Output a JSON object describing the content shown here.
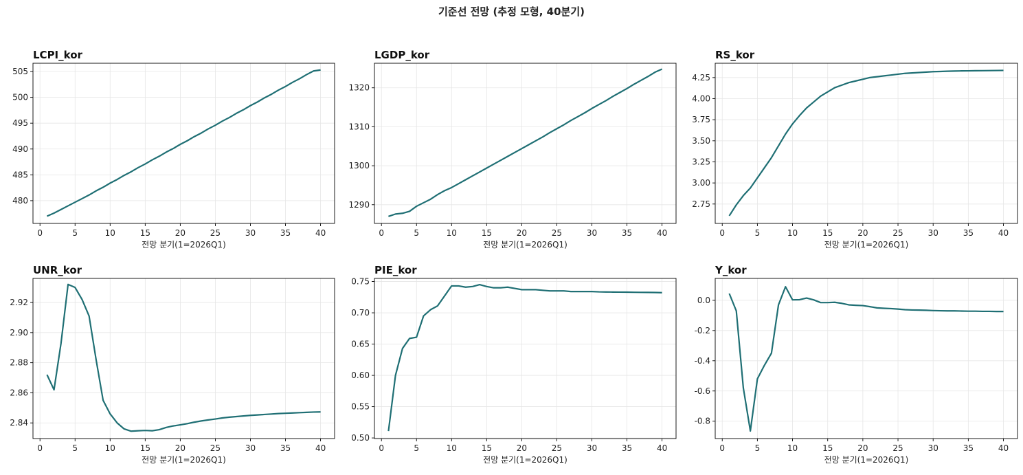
{
  "figure": {
    "title": "기준선 전망 (추정 모형, 40분기)",
    "line_color": "#1f6f74"
  },
  "chart_data": [
    {
      "type": "line",
      "title": "LCPI_kor",
      "xlabel": "전망 분기(1=2026Q1)",
      "ylabel": "",
      "xlim": [
        -1,
        42
      ],
      "ylim": [
        475.6,
        506.6
      ],
      "xticks": [
        0,
        5,
        10,
        15,
        20,
        25,
        30,
        35,
        40
      ],
      "yticks": [
        480,
        485,
        490,
        495,
        500,
        505
      ],
      "ytick_labels": [
        "480",
        "485",
        "490",
        "495",
        "500",
        "505"
      ],
      "grid": true,
      "x": [
        1,
        2,
        3,
        4,
        5,
        6,
        7,
        8,
        9,
        10,
        11,
        12,
        13,
        14,
        15,
        16,
        17,
        18,
        19,
        20,
        21,
        22,
        23,
        24,
        25,
        26,
        27,
        28,
        29,
        30,
        31,
        32,
        33,
        34,
        35,
        36,
        37,
        38,
        39,
        40
      ],
      "series": [
        {
          "values": [
            477.0,
            477.6,
            478.3,
            479.0,
            479.7,
            480.4,
            481.1,
            481.9,
            482.6,
            483.4,
            484.1,
            484.9,
            485.6,
            486.4,
            487.1,
            487.9,
            488.6,
            489.4,
            490.1,
            490.9,
            491.6,
            492.4,
            493.1,
            493.9,
            494.6,
            495.4,
            496.1,
            496.9,
            497.6,
            498.4,
            499.1,
            499.9,
            500.6,
            501.4,
            502.1,
            502.9,
            503.6,
            504.4,
            505.1,
            505.3
          ]
        }
      ]
    },
    {
      "type": "line",
      "title": "LGDP_kor",
      "xlabel": "전망 분기(1=2026Q1)",
      "ylabel": "",
      "xlim": [
        -1,
        42
      ],
      "ylim": [
        1285.2,
        1326.3
      ],
      "xticks": [
        0,
        5,
        10,
        15,
        20,
        25,
        30,
        35,
        40
      ],
      "yticks": [
        1290,
        1300,
        1310,
        1320
      ],
      "ytick_labels": [
        "1290",
        "1300",
        "1310",
        "1320"
      ],
      "grid": true,
      "x": [
        1,
        2,
        3,
        4,
        5,
        6,
        7,
        8,
        9,
        10,
        11,
        12,
        13,
        14,
        15,
        16,
        17,
        18,
        19,
        20,
        21,
        22,
        23,
        24,
        25,
        26,
        27,
        28,
        29,
        30,
        31,
        32,
        33,
        34,
        35,
        36,
        37,
        38,
        39,
        40
      ],
      "series": [
        {
          "values": [
            1287.0,
            1287.6,
            1287.8,
            1288.3,
            1289.6,
            1290.5,
            1291.4,
            1292.6,
            1293.6,
            1294.4,
            1295.4,
            1296.4,
            1297.4,
            1298.4,
            1299.4,
            1300.4,
            1301.4,
            1302.4,
            1303.4,
            1304.4,
            1305.4,
            1306.4,
            1307.4,
            1308.5,
            1309.5,
            1310.5,
            1311.6,
            1312.6,
            1313.6,
            1314.7,
            1315.7,
            1316.7,
            1317.8,
            1318.8,
            1319.8,
            1320.9,
            1321.9,
            1322.9,
            1324.0,
            1324.8
          ]
        }
      ]
    },
    {
      "type": "line",
      "title": "RS_kor",
      "xlabel": "전망 분기(1=2026Q1)",
      "ylabel": "",
      "xlim": [
        -1,
        42
      ],
      "ylim": [
        2.52,
        4.42
      ],
      "xticks": [
        0,
        5,
        10,
        15,
        20,
        25,
        30,
        35,
        40
      ],
      "yticks": [
        2.75,
        3.0,
        3.25,
        3.5,
        3.75,
        4.0,
        4.25
      ],
      "ytick_labels": [
        "2.75",
        "3.00",
        "3.25",
        "3.50",
        "3.75",
        "4.00",
        "4.25"
      ],
      "grid": true,
      "x": [
        1,
        2,
        3,
        4,
        5,
        6,
        7,
        8,
        9,
        10,
        11,
        12,
        13,
        14,
        15,
        16,
        17,
        18,
        19,
        20,
        21,
        22,
        23,
        24,
        25,
        26,
        27,
        28,
        29,
        30,
        31,
        32,
        33,
        34,
        35,
        36,
        37,
        38,
        39,
        40
      ],
      "series": [
        {
          "values": [
            2.61,
            2.74,
            2.85,
            2.94,
            3.06,
            3.18,
            3.3,
            3.44,
            3.58,
            3.7,
            3.8,
            3.89,
            3.96,
            4.03,
            4.08,
            4.13,
            4.16,
            4.19,
            4.21,
            4.23,
            4.25,
            4.26,
            4.27,
            4.28,
            4.29,
            4.3,
            4.305,
            4.31,
            4.315,
            4.32,
            4.322,
            4.325,
            4.327,
            4.329,
            4.33,
            4.331,
            4.332,
            4.333,
            4.334,
            4.335
          ]
        }
      ]
    },
    {
      "type": "line",
      "title": "UNR_kor",
      "xlabel": "전망 분기(1=2026Q1)",
      "ylabel": "",
      "xlim": [
        -1,
        42
      ],
      "ylim": [
        2.8296,
        2.936
      ],
      "xticks": [
        0,
        5,
        10,
        15,
        20,
        25,
        30,
        35,
        40
      ],
      "yticks": [
        2.84,
        2.86,
        2.88,
        2.9,
        2.92
      ],
      "ytick_labels": [
        "2.84",
        "2.86",
        "2.88",
        "2.90",
        "2.92"
      ],
      "grid": true,
      "x": [
        1,
        2,
        3,
        4,
        5,
        6,
        7,
        8,
        9,
        10,
        11,
        12,
        13,
        14,
        15,
        16,
        17,
        18,
        19,
        20,
        21,
        22,
        23,
        24,
        25,
        26,
        27,
        28,
        29,
        30,
        31,
        32,
        33,
        34,
        35,
        36,
        37,
        38,
        39,
        40
      ],
      "series": [
        {
          "values": [
            2.872,
            2.862,
            2.893,
            2.932,
            2.93,
            2.922,
            2.911,
            2.882,
            2.855,
            2.846,
            2.84,
            2.836,
            2.8345,
            2.8348,
            2.835,
            2.8348,
            2.8355,
            2.837,
            2.838,
            2.8387,
            2.8395,
            2.8405,
            2.8413,
            2.842,
            2.8426,
            2.8433,
            2.8438,
            2.8442,
            2.8446,
            2.845,
            2.8453,
            2.8456,
            2.8459,
            2.8462,
            2.8464,
            2.8466,
            2.8468,
            2.847,
            2.8472,
            2.8473
          ]
        }
      ]
    },
    {
      "type": "line",
      "title": "PIE_kor",
      "xlabel": "전망 분기(1=2026Q1)",
      "ylabel": "",
      "xlim": [
        -1,
        42
      ],
      "ylim": [
        0.499,
        0.755
      ],
      "xticks": [
        0,
        5,
        10,
        15,
        20,
        25,
        30,
        35,
        40
      ],
      "yticks": [
        0.5,
        0.55,
        0.6,
        0.65,
        0.7,
        0.75
      ],
      "ytick_labels": [
        "0.50",
        "0.55",
        "0.60",
        "0.65",
        "0.70",
        "0.75"
      ],
      "grid": true,
      "x": [
        1,
        2,
        3,
        4,
        5,
        6,
        7,
        8,
        9,
        10,
        11,
        12,
        13,
        14,
        15,
        16,
        17,
        18,
        19,
        20,
        21,
        22,
        23,
        24,
        25,
        26,
        27,
        28,
        29,
        30,
        31,
        32,
        33,
        34,
        35,
        36,
        37,
        38,
        39,
        40
      ],
      "series": [
        {
          "values": [
            0.511,
            0.6,
            0.643,
            0.659,
            0.661,
            0.695,
            0.705,
            0.711,
            0.727,
            0.743,
            0.743,
            0.741,
            0.742,
            0.745,
            0.742,
            0.74,
            0.74,
            0.741,
            0.739,
            0.737,
            0.737,
            0.737,
            0.736,
            0.735,
            0.735,
            0.735,
            0.734,
            0.734,
            0.734,
            0.734,
            0.7335,
            0.7333,
            0.7332,
            0.7331,
            0.733,
            0.7328,
            0.7327,
            0.7326,
            0.7325,
            0.7322
          ]
        }
      ]
    },
    {
      "type": "line",
      "title": "Y_kor",
      "xlabel": "전망 분기(1=2026Q1)",
      "ylabel": "",
      "xlim": [
        -1,
        42
      ],
      "ylim": [
        -0.915,
        0.145
      ],
      "xticks": [
        0,
        5,
        10,
        15,
        20,
        25,
        30,
        35,
        40
      ],
      "yticks": [
        -0.8,
        -0.6,
        -0.4,
        -0.2,
        0.0
      ],
      "ytick_labels": [
        "-0.8",
        "-0.6",
        "-0.4",
        "-0.2",
        "0.0"
      ],
      "grid": true,
      "x": [
        1,
        2,
        3,
        4,
        5,
        6,
        7,
        8,
        9,
        10,
        11,
        12,
        13,
        14,
        15,
        16,
        17,
        18,
        19,
        20,
        21,
        22,
        23,
        24,
        25,
        26,
        27,
        28,
        29,
        30,
        31,
        32,
        33,
        34,
        35,
        36,
        37,
        38,
        39,
        40
      ],
      "series": [
        {
          "values": [
            0.045,
            -0.07,
            -0.58,
            -0.865,
            -0.52,
            -0.43,
            -0.35,
            -0.03,
            0.09,
            0.003,
            0.004,
            0.015,
            0.003,
            -0.015,
            -0.015,
            -0.013,
            -0.02,
            -0.03,
            -0.033,
            -0.035,
            -0.042,
            -0.05,
            -0.053,
            -0.055,
            -0.058,
            -0.062,
            -0.064,
            -0.065,
            -0.066,
            -0.068,
            -0.069,
            -0.07,
            -0.07,
            -0.071,
            -0.072,
            -0.072,
            -0.073,
            -0.073,
            -0.074,
            -0.074
          ]
        }
      ]
    }
  ]
}
